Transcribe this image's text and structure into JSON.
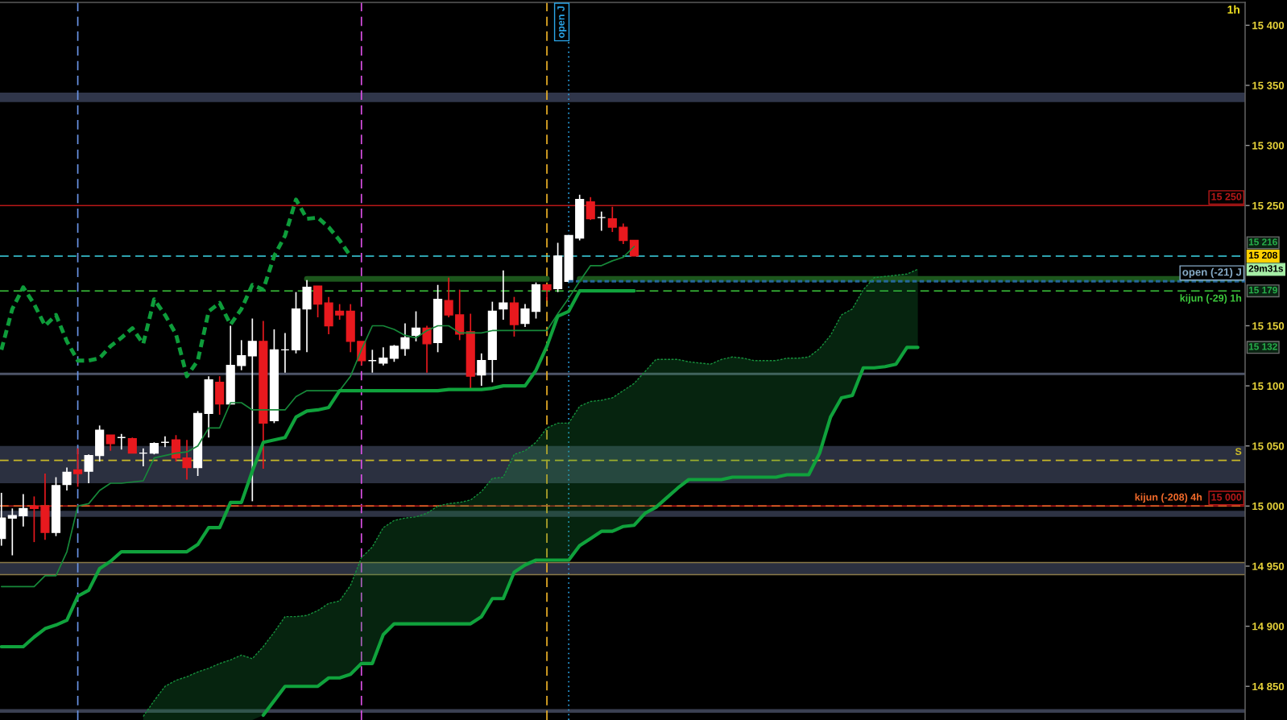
{
  "chart_data": {
    "type": "candlestick",
    "title": "1h",
    "categories": [
      null,
      null,
      null,
      null,
      null,
      null,
      null,
      null,
      null,
      null,
      null,
      null,
      null,
      null,
      null,
      null,
      null,
      null,
      null,
      null,
      null,
      null,
      null,
      null,
      null,
      null,
      null,
      null,
      null,
      null,
      null,
      null,
      null,
      null,
      null,
      null,
      null,
      null,
      null,
      null,
      null,
      null,
      null,
      null,
      null,
      null,
      null,
      null,
      null,
      null,
      null,
      null,
      null,
      null,
      null,
      null,
      null,
      null,
      null,
      null,
      null,
      null,
      null,
      null,
      null,
      null,
      null,
      null,
      null,
      null,
      null,
      null,
      null,
      null,
      null,
      null,
      null,
      null,
      null,
      null,
      null,
      null,
      null,
      null,
      null,
      null,
      null,
      null,
      null,
      null,
      null,
      null,
      null,
      null,
      null,
      null,
      null,
      null,
      null,
      null,
      null,
      null,
      null,
      null,
      null,
      null,
      null,
      null,
      null,
      null,
      null,
      null,
      null,
      null,
      null
    ],
    "ohlc": [
      [
        14973,
        15011,
        14967,
        14990
      ],
      [
        14990,
        14998,
        14959,
        14992
      ],
      [
        14992,
        15010,
        14983,
        14998
      ],
      [
        15000,
        15008,
        14970,
        14998
      ],
      [
        15000,
        15027,
        14972,
        14978
      ],
      [
        14978,
        15024,
        14975,
        15017
      ],
      [
        15018,
        15032,
        15013,
        15028
      ],
      [
        15030,
        15048,
        15016,
        15027
      ],
      [
        15029,
        15043,
        15019,
        15042
      ],
      [
        15042,
        15067,
        15037,
        15063
      ],
      [
        15059,
        15059,
        15046,
        15052
      ],
      [
        15057,
        15060,
        15047,
        15057
      ],
      [
        15056,
        15057,
        15044,
        15044
      ],
      [
        15044,
        15048,
        15033,
        15044
      ],
      [
        15044,
        15053,
        15043,
        15052
      ],
      [
        15053,
        15058,
        15049,
        15053
      ],
      [
        15055,
        15059,
        15037,
        15040
      ],
      [
        15040,
        15055,
        15022,
        15032
      ],
      [
        15032,
        15079,
        15025,
        15077
      ],
      [
        15077,
        15108,
        15057,
        15105
      ],
      [
        15103,
        15108,
        15076,
        15085
      ],
      [
        15085,
        15150,
        15085,
        15117
      ],
      [
        15117,
        15138,
        15113,
        15125
      ],
      [
        15125,
        15156,
        15004,
        15137
      ],
      [
        15137,
        15154,
        15031,
        15069
      ],
      [
        15071,
        15147,
        15069,
        15130
      ],
      [
        15130,
        15144,
        15111,
        15130
      ],
      [
        15130,
        15178,
        15127,
        15164
      ],
      [
        15164,
        15188,
        15128,
        15182
      ],
      [
        15183,
        15183,
        15157,
        15168
      ],
      [
        15169,
        15174,
        15143,
        15150
      ],
      [
        15162,
        15168,
        15155,
        15159
      ],
      [
        15162,
        15168,
        15128,
        15137
      ],
      [
        15137,
        15137,
        15117,
        15121
      ],
      [
        15121,
        15130,
        15111,
        15121
      ],
      [
        15119,
        15132,
        15117,
        15123
      ],
      [
        15123,
        15134,
        15120,
        15133
      ],
      [
        15131,
        15152,
        15125,
        15140
      ],
      [
        15142,
        15162,
        15137,
        15148
      ],
      [
        15148,
        15150,
        15111,
        15135
      ],
      [
        15136,
        15184,
        15128,
        15172
      ],
      [
        15171,
        15190,
        15157,
        15159
      ],
      [
        15159,
        15180,
        15138,
        15143
      ],
      [
        15145,
        15160,
        15098,
        15108
      ],
      [
        15109,
        15127,
        15100,
        15121
      ],
      [
        15122,
        15170,
        15103,
        15162
      ],
      [
        15164,
        15196,
        15155,
        15169
      ],
      [
        15169,
        15174,
        15141,
        15151
      ],
      [
        15152,
        15168,
        15149,
        15164
      ],
      [
        15162,
        15186,
        15156,
        15184
      ],
      [
        15184,
        15184,
        15171,
        15180
      ],
      [
        15181,
        15219,
        15178,
        15208
      ],
      [
        15187,
        15225,
        15187,
        15225
      ],
      [
        15223,
        15259,
        15221,
        15255
      ],
      [
        15253,
        15257,
        15238,
        15239
      ],
      [
        15240,
        15245,
        15229,
        15240
      ],
      [
        15239,
        15249,
        15228,
        15232
      ],
      [
        15232,
        15235,
        15218,
        15221
      ],
      [
        15221,
        15221,
        15208,
        15208
      ],
      null,
      null,
      null,
      null,
      null,
      null,
      null,
      null,
      null,
      null,
      null,
      null,
      null,
      null,
      null,
      null,
      null,
      null,
      null,
      null,
      null,
      null,
      null,
      null,
      null,
      null,
      null,
      null,
      null,
      null,
      null,
      null,
      null,
      null,
      null,
      null,
      null,
      null,
      null,
      null,
      null,
      null,
      null,
      null,
      null,
      null,
      null,
      null,
      null,
      null,
      null,
      null,
      null,
      null,
      null,
      null
    ],
    "colors": [
      "#ffffff",
      "#ffffff",
      "#ffffff",
      "#e8191e",
      "#e8191e",
      "#ffffff",
      "#ffffff",
      "#e8191e",
      "#ffffff",
      "#ffffff",
      "#e8191e",
      "#ffffff",
      "#e8191e",
      "#ffffff",
      "#ffffff",
      "#ffffff",
      "#e8191e",
      "#e8191e",
      "#ffffff",
      "#ffffff",
      "#e8191e",
      "#ffffff",
      "#ffffff",
      "#ffffff",
      "#e8191e",
      "#ffffff",
      "#ffffff",
      "#ffffff",
      "#ffffff",
      "#e8191e",
      "#e8191e",
      "#e8191e",
      "#e8191e",
      "#e8191e",
      "#ffffff",
      "#ffffff",
      "#ffffff",
      "#ffffff",
      "#ffffff",
      "#e8191e",
      "#ffffff",
      "#e8191e",
      "#e8191e",
      "#e8191e",
      "#ffffff",
      "#ffffff",
      "#ffffff",
      "#e8191e",
      "#ffffff",
      "#ffffff",
      "#e8191e",
      "#ffffff",
      "#ffffff",
      "#ffffff",
      "#e8191e",
      "#ffffff",
      "#e8191e",
      "#e8191e",
      "#e8191e",
      null,
      null,
      null,
      null,
      null,
      null,
      null,
      null,
      null,
      null,
      null,
      null,
      null,
      null,
      null,
      null,
      null,
      null,
      null,
      null,
      null,
      null,
      null,
      null,
      null,
      null,
      null,
      null,
      null,
      null,
      null,
      null,
      null,
      null,
      null,
      null,
      null,
      null,
      null,
      null,
      null,
      null,
      null,
      null,
      null,
      null,
      null,
      null,
      null,
      null,
      null,
      null,
      null,
      null,
      null,
      null
    ],
    "series": [
      {
        "type": "line",
        "color": "#17893a",
        "values": [
          14933,
          14933,
          14933,
          14933,
          14942,
          14942,
          14962,
          15000,
          15002,
          15013,
          15019,
          15019,
          15020,
          15021,
          15040,
          15042,
          15044,
          15045,
          15050,
          15065,
          15065,
          15086,
          15086,
          15080,
          15080,
          15080,
          15080,
          15091,
          15096,
          15096,
          15096,
          15096,
          15108,
          15130,
          15150,
          15150,
          15147,
          15142,
          15140,
          15146,
          15150,
          15150,
          15144,
          15144,
          15144,
          15146,
          15146,
          15146,
          15146,
          15146,
          15146,
          15160,
          15173,
          15187,
          15200,
          15200,
          15204,
          15207,
          15216,
          null,
          null,
          null,
          null,
          null,
          null,
          null,
          null,
          null,
          null,
          null,
          null,
          null,
          null,
          null,
          null,
          null,
          null,
          null,
          null,
          null,
          null,
          null,
          null,
          null,
          null,
          null,
          null,
          null,
          null,
          null,
          null,
          null,
          null,
          null,
          null,
          null,
          null,
          null,
          null,
          null,
          null,
          null,
          null,
          null,
          null,
          null,
          null,
          null,
          null,
          null,
          null,
          null,
          null,
          null,
          null
        ]
      },
      {
        "type": "line",
        "color": "#10a23c",
        "values": [
          14883,
          14883,
          14883,
          14891,
          14898,
          14901,
          14905,
          14925,
          14930,
          14948,
          14954,
          14962,
          14962,
          14962,
          14962,
          14962,
          14962,
          14962,
          14968,
          14982,
          14982,
          15003,
          15003,
          15029,
          15053,
          15055,
          15057,
          15074,
          15079,
          15080,
          15082,
          15096,
          15096,
          15096,
          15096,
          15096,
          15096,
          15096,
          15096,
          15096,
          15096,
          15097,
          15097,
          15097,
          15097,
          15098,
          15100,
          15100,
          15100,
          15113,
          15133,
          15158,
          15162,
          15179,
          15179,
          15179,
          15179,
          15179,
          15179,
          null,
          null,
          null,
          null,
          null,
          null,
          null,
          null,
          null,
          null,
          null,
          null,
          null,
          null,
          null,
          null,
          null,
          null,
          null,
          null,
          null,
          null,
          null,
          null,
          null,
          null,
          null,
          null,
          null,
          null,
          null,
          null,
          null,
          null,
          null,
          null,
          null,
          null,
          null,
          null,
          null,
          null,
          null,
          null,
          null,
          null,
          null,
          null,
          null,
          null,
          null,
          null,
          null,
          null,
          null,
          null
        ]
      },
      {
        "type": "line",
        "color": "#0e9c3a",
        "line_style": "dashed",
        "values": [
          15130,
          15164,
          15182,
          15168,
          15150,
          15159,
          15137,
          15121,
          15121,
          15123,
          15133,
          15140,
          15148,
          15135,
          15172,
          15159,
          15143,
          15108,
          15121,
          15162,
          15169,
          15151,
          15164,
          15184,
          15180,
          15208,
          15225,
          15255,
          15239,
          15240,
          15232,
          15221,
          15208,
          null,
          null,
          null,
          null,
          null,
          null,
          null,
          null,
          null,
          null,
          null,
          null,
          null,
          null,
          null,
          null,
          null,
          null,
          null,
          null,
          null,
          null,
          null,
          null,
          null,
          null,
          null,
          null,
          null,
          null,
          null,
          null,
          null,
          null,
          null,
          null,
          null,
          null,
          null,
          null,
          null,
          null,
          null,
          null,
          null,
          null,
          null,
          null,
          null,
          null,
          null,
          null,
          null,
          null,
          null,
          null,
          null,
          null,
          null,
          null,
          null,
          null,
          null,
          null,
          null,
          null,
          null,
          null,
          null,
          null,
          null,
          null,
          null,
          null,
          null,
          null,
          null,
          null,
          null,
          null,
          null,
          null
        ]
      },
      {
        "type": "line",
        "color": "#16903c",
        "line_style": "dashed",
        "values": [
          null,
          null,
          null,
          null,
          null,
          null,
          null,
          null,
          null,
          null,
          null,
          null,
          null,
          14825,
          14838,
          14850,
          14855,
          14858,
          14862,
          14865,
          14869,
          14872,
          14876,
          14873,
          14883,
          14895,
          14908,
          14908,
          14909,
          14913,
          14919,
          14921,
          14934,
          14957,
          14966,
          14982,
          14988,
          14990,
          14991,
          14994,
          15000,
          15002,
          15003,
          15005,
          15012,
          15023,
          15024,
          15043,
          15046,
          15053,
          15065,
          15069,
          15069,
          15083,
          15087,
          15088,
          15090,
          15096,
          15102,
          15112,
          15122,
          15122,
          15122,
          15120,
          15119,
          15118,
          15122,
          15124,
          15123,
          15121,
          15121,
          15121,
          15123,
          15123,
          15124,
          15131,
          15142,
          15159,
          15164,
          15180,
          15190,
          15191,
          15192,
          15193,
          15197,
          null,
          null,
          null,
          null,
          null,
          null,
          null,
          null,
          null,
          null,
          null,
          null,
          null,
          null,
          null,
          null,
          null,
          null,
          null,
          null,
          null,
          null,
          null,
          null,
          null,
          null,
          null,
          null,
          null,
          null
        ],
        "upper": [
          null,
          null,
          null,
          null,
          null,
          null,
          null,
          null,
          null,
          null,
          null,
          null,
          null,
          14825,
          14838,
          14850,
          14855,
          14858,
          14862,
          14865,
          14869,
          14872,
          14876,
          14873,
          14883,
          14895,
          14908,
          14908,
          14909,
          14913,
          14919,
          14921,
          14934,
          14957,
          14966,
          14982,
          14988,
          14990,
          14991,
          14994,
          15000,
          15002,
          15003,
          15005,
          15012,
          15023,
          15024,
          15043,
          15046,
          15053,
          15065,
          15069,
          15069,
          15083,
          15087,
          15088,
          15090,
          15096,
          15102,
          15112,
          15122,
          15122,
          15122,
          15120,
          15119,
          15118,
          15122,
          15124,
          15123,
          15121,
          15121,
          15121,
          15123,
          15123,
          15124,
          15131,
          15142,
          15159,
          15164,
          15180,
          15190,
          15191,
          15192,
          15193,
          15197,
          null,
          null,
          null,
          null,
          null,
          null,
          null,
          null,
          null,
          null,
          null,
          null,
          null,
          null,
          null,
          null,
          null,
          null,
          null,
          null,
          null,
          null,
          null,
          null,
          null,
          null,
          null,
          null,
          null,
          null
        ],
        "lower": [
          null,
          null,
          null,
          null,
          null,
          null,
          null,
          null,
          null,
          null,
          null,
          null,
          null,
          14822,
          14822,
          14822,
          14822,
          14822,
          14822,
          14822,
          14822,
          14822,
          14822,
          14822,
          14826,
          14838,
          14850,
          14850,
          14850,
          14850,
          14857,
          14857,
          14860,
          14869,
          14869,
          14893,
          14902,
          14902,
          14902,
          14902,
          14902,
          14902,
          14902,
          14902,
          14908,
          14923,
          14923,
          14945,
          14951,
          14955,
          14955,
          14955,
          14955,
          14967,
          14973,
          14979,
          14979,
          14983,
          14984,
          14994,
          14999,
          15007,
          15015,
          15022,
          15022,
          15022,
          15022,
          15024,
          15024,
          15024,
          15024,
          15024,
          15026,
          15026,
          15026,
          15044,
          15074,
          15090,
          15092,
          15115,
          15115,
          15116,
          15118,
          15132,
          15132,
          null,
          null,
          null,
          null,
          null,
          null,
          null,
          null,
          null,
          null,
          null,
          null,
          null,
          null,
          null,
          null,
          null,
          null,
          null,
          null,
          null,
          null,
          null,
          null,
          null,
          null,
          null,
          null,
          null,
          null
        ]
      },
      {
        "type": "line",
        "color": "#10a23c",
        "values": [
          null,
          null,
          null,
          null,
          null,
          null,
          null,
          null,
          null,
          null,
          null,
          null,
          null,
          null,
          null,
          null,
          null,
          null,
          null,
          null,
          null,
          null,
          null,
          null,
          14826,
          14838,
          14850,
          14850,
          14850,
          14850,
          14857,
          14857,
          14860,
          14869,
          14869,
          14893,
          14902,
          14902,
          14902,
          14902,
          14902,
          14902,
          14902,
          14902,
          14908,
          14923,
          14923,
          14945,
          14951,
          14955,
          14955,
          14955,
          14955,
          14967,
          14973,
          14979,
          14979,
          14983,
          14984,
          14994,
          14999,
          15007,
          15015,
          15022,
          15022,
          15022,
          15022,
          15024,
          15024,
          15024,
          15024,
          15024,
          15026,
          15026,
          15026,
          15044,
          15074,
          15090,
          15092,
          15115,
          15115,
          15116,
          15118,
          15132,
          15132,
          null,
          null,
          null,
          null,
          null,
          null,
          null,
          null,
          null,
          null,
          null,
          null,
          null,
          null,
          null,
          null,
          null,
          null,
          null,
          null,
          null,
          null,
          null,
          null,
          null,
          null,
          null,
          null,
          null,
          null
        ]
      },
      {
        "type": "line",
        "color": "#1c561c",
        "values": [
          null,
          null,
          null,
          null,
          null,
          null,
          null,
          null,
          null,
          null,
          null,
          null,
          null,
          null,
          null,
          null,
          null,
          null,
          null,
          null,
          null,
          null,
          null,
          null,
          null,
          null,
          null,
          null,
          15189,
          15189,
          15189,
          15189,
          15189,
          15189,
          15189,
          15189,
          15189,
          15189,
          15189,
          15189,
          15189,
          15189,
          15189,
          15189,
          15189,
          15189,
          15189,
          15189,
          15189,
          15189,
          15189,
          null,
          null,
          15189,
          15189,
          15189,
          15189,
          15189,
          15189,
          15189,
          15189,
          15189,
          15189,
          15189,
          15189,
          15189,
          15189,
          15189,
          15189,
          15189,
          15189,
          15189,
          15189,
          15189,
          15189,
          15189,
          15189,
          15189,
          15189,
          15189,
          15189,
          15189,
          15189,
          15189,
          15189,
          15189,
          15189,
          15189,
          15189,
          15189,
          15189,
          15189,
          15189,
          15189,
          15189,
          15189,
          15189,
          15189,
          15189,
          15189,
          15189,
          15189,
          15189,
          15189,
          15189,
          15189,
          15189,
          15189,
          15189,
          15189,
          15189,
          15189,
          15189,
          15189,
          15189
        ]
      },
      {
        "type": "line",
        "name": "open (-21) J",
        "color": "#25679a",
        "line_style": "dashed",
        "values": [
          null,
          null,
          null,
          null,
          null,
          null,
          null,
          null,
          null,
          null,
          null,
          null,
          null,
          null,
          null,
          null,
          null,
          null,
          null,
          null,
          null,
          null,
          null,
          null,
          null,
          null,
          null,
          null,
          null,
          null,
          null,
          null,
          null,
          null,
          null,
          null,
          null,
          null,
          null,
          null,
          null,
          null,
          null,
          null,
          null,
          null,
          null,
          null,
          null,
          null,
          null,
          null,
          15187,
          15187,
          15187,
          15187,
          15187,
          15187,
          15187,
          15187,
          15187,
          15187,
          15187,
          15187,
          15187,
          15187,
          15187,
          15187,
          15187,
          15187,
          15187,
          15187,
          15187,
          15187,
          15187,
          15187,
          15187,
          15187,
          15187,
          15187,
          15187,
          15187,
          15187,
          15187,
          15187,
          15187,
          15187,
          15187,
          15187,
          15187,
          15187,
          15187,
          15187,
          15187,
          15187,
          15187,
          15187,
          15187,
          15187,
          15187,
          15187,
          15187,
          15187,
          15187,
          15187,
          15187,
          15187,
          15187,
          15187,
          15187,
          15187,
          15187,
          15187,
          15187,
          15187
        ]
      }
    ],
    "bands": [
      {
        "axis": "y",
        "from": 15336,
        "to": 15344,
        "color": "#30364a"
      },
      {
        "axis": "y",
        "from": 15109,
        "to": 15111,
        "color": "#4e5468"
      },
      {
        "axis": "y",
        "from": 15019,
        "to": 15050,
        "color": "#2b3040"
      },
      {
        "axis": "y",
        "from": 14991,
        "to": 14996,
        "color": "#2e3344"
      },
      {
        "axis": "y",
        "from": 14943,
        "to": 14953,
        "color": "#2b3040"
      },
      {
        "axis": "y",
        "from": 14828,
        "to": 14831,
        "color": "#3a4052"
      }
    ],
    "ref_lines": [
      {
        "axis": "y",
        "value": 15250,
        "label": "15 250",
        "color": "#b81818"
      },
      {
        "axis": "y",
        "value": 15208,
        "color": "#3ed8e8",
        "line_style": "dashed"
      },
      {
        "axis": "y",
        "value": 15179,
        "label": "kijun (-29) 1h",
        "color": "#3cc83c",
        "line_style": "dashed"
      },
      {
        "axis": "y",
        "value": 15038,
        "label": "S",
        "color": "#c8b828",
        "line_style": "dashed"
      },
      {
        "axis": "y",
        "value": 15000,
        "label": "kijun (-208) 4h",
        "color": "#f26a2a",
        "line_style": "dashed"
      },
      {
        "axis": "y",
        "value": 15000,
        "label": "15 000",
        "color": "#b81818"
      },
      {
        "axis": "y",
        "value": 14953,
        "color": "#8a7a48"
      },
      {
        "axis": "y",
        "value": 14943,
        "color": "#8a7a48"
      }
    ],
    "annotations": [
      "15 216",
      {
        "text": "15 208",
        "y": 15208
      },
      "29m31s",
      {
        "text": "15 179",
        "y": 15179
      },
      {
        "text": "15 132",
        "y": 15132
      },
      "open J"
    ],
    "ylim": [
      14822,
      15419
    ],
    "yticks": [
      {
        "value": 14850,
        "label": "14 850"
      },
      {
        "value": 14900,
        "label": "14 900"
      },
      {
        "value": 14950,
        "label": "14 950"
      },
      {
        "value": 15000,
        "label": "15 000"
      },
      {
        "value": 15050,
        "label": "15 050"
      },
      {
        "value": 15100,
        "label": "15 100"
      },
      {
        "value": 15150,
        "label": "15 150"
      },
      {
        "value": 15250,
        "label": "15 250"
      },
      {
        "value": 15300,
        "label": "15 300"
      },
      {
        "value": 15350,
        "label": "15 350"
      },
      {
        "value": 15400,
        "label": "15 400"
      }
    ],
    "tick_labels": "y"
  }
}
